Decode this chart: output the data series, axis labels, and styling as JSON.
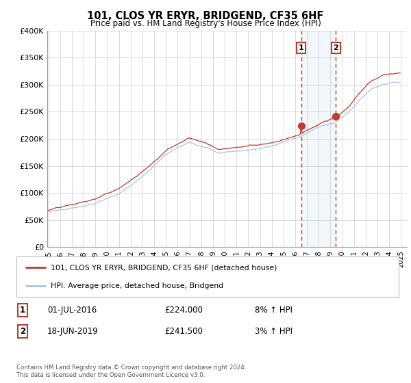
{
  "title": "101, CLOS YR ERYR, BRIDGEND, CF35 6HF",
  "subtitle": "Price paid vs. HM Land Registry's House Price Index (HPI)",
  "ylim": [
    0,
    400000
  ],
  "yticks": [
    0,
    50000,
    100000,
    150000,
    200000,
    250000,
    300000,
    350000,
    400000
  ],
  "ytick_labels": [
    "£0",
    "£50K",
    "£100K",
    "£150K",
    "£200K",
    "£250K",
    "£300K",
    "£350K",
    "£400K"
  ],
  "xlim_start": 1994.9,
  "xlim_end": 2025.5,
  "xticks": [
    1995,
    1996,
    1997,
    1998,
    1999,
    2000,
    2001,
    2002,
    2003,
    2004,
    2005,
    2006,
    2007,
    2008,
    2009,
    2010,
    2011,
    2012,
    2013,
    2014,
    2015,
    2016,
    2017,
    2018,
    2019,
    2020,
    2021,
    2022,
    2023,
    2024,
    2025
  ],
  "sale1_date": 2016.5,
  "sale1_price": 224000,
  "sale1_label": "1",
  "sale2_date": 2019.46,
  "sale2_price": 241500,
  "sale2_label": "2",
  "hpi_color": "#aac4e0",
  "price_color": "#c0392b",
  "dot_color": "#c0392b",
  "vline_color": "#c0392b",
  "shade_color": "#daeaf7",
  "legend_label_price": "101, CLOS YR ERYR, BRIDGEND, CF35 6HF (detached house)",
  "legend_label_hpi": "HPI: Average price, detached house, Bridgend",
  "annotation1_date": "01-JUL-2016",
  "annotation1_price": "£224,000",
  "annotation1_pct": "8% ↑ HPI",
  "annotation2_date": "18-JUN-2019",
  "annotation2_price": "£241,500",
  "annotation2_pct": "3% ↑ HPI",
  "footer": "Contains HM Land Registry data © Crown copyright and database right 2024.\nThis data is licensed under the Open Government Licence v3.0.",
  "background_color": "#ffffff",
  "grid_color": "#cccccc"
}
